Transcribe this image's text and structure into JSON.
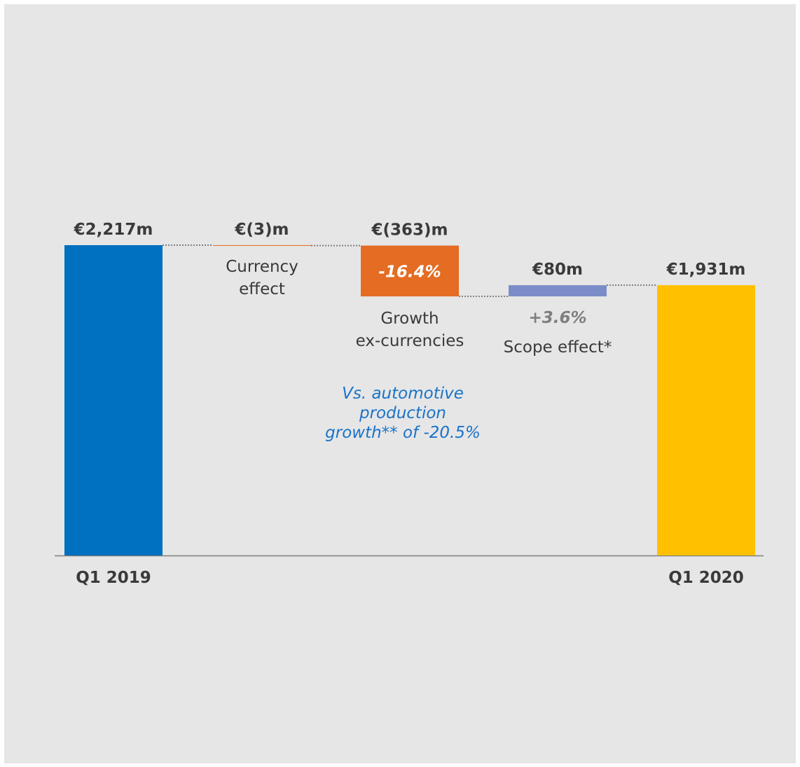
{
  "chart_data": {
    "type": "waterfall",
    "unit": "€m",
    "steps": [
      {
        "key": "q1_2019",
        "kind": "total",
        "value": 2217,
        "value_label": "€2,217m",
        "category": [
          "Q1 2019"
        ],
        "color": "#0070c0"
      },
      {
        "key": "currency",
        "kind": "delta",
        "value": -3,
        "value_label": "€(3)m",
        "category": [
          "Currency",
          "effect"
        ],
        "color": "#e46c23"
      },
      {
        "key": "growth",
        "kind": "delta",
        "value": -363,
        "value_label": "€(363)m",
        "category": [
          "Growth",
          "ex-currencies"
        ],
        "color": "#e46c23",
        "pct_label": "-16.4%"
      },
      {
        "key": "scope",
        "kind": "delta",
        "value": 80,
        "value_label": "€80m",
        "category": [
          "Scope effect*"
        ],
        "color": "#7a8cc8",
        "pct_label": "+3.6%"
      },
      {
        "key": "q1_2020",
        "kind": "total",
        "value": 1931,
        "value_label": "€1,931m",
        "category": [
          "Q1 2020"
        ],
        "color": "#ffc000"
      }
    ],
    "annotation": [
      "Vs. automotive",
      "production",
      "growth** of -20.5%"
    ],
    "colors": {
      "panel": "#e6e6e6",
      "axis": "#7f7f7f",
      "connector": "#7f7f7f",
      "text": "#3a3a3a",
      "annotation": "#1a73c8",
      "pct_on_bar": "#ffffff",
      "pct_below": "#7f7f7f"
    }
  }
}
